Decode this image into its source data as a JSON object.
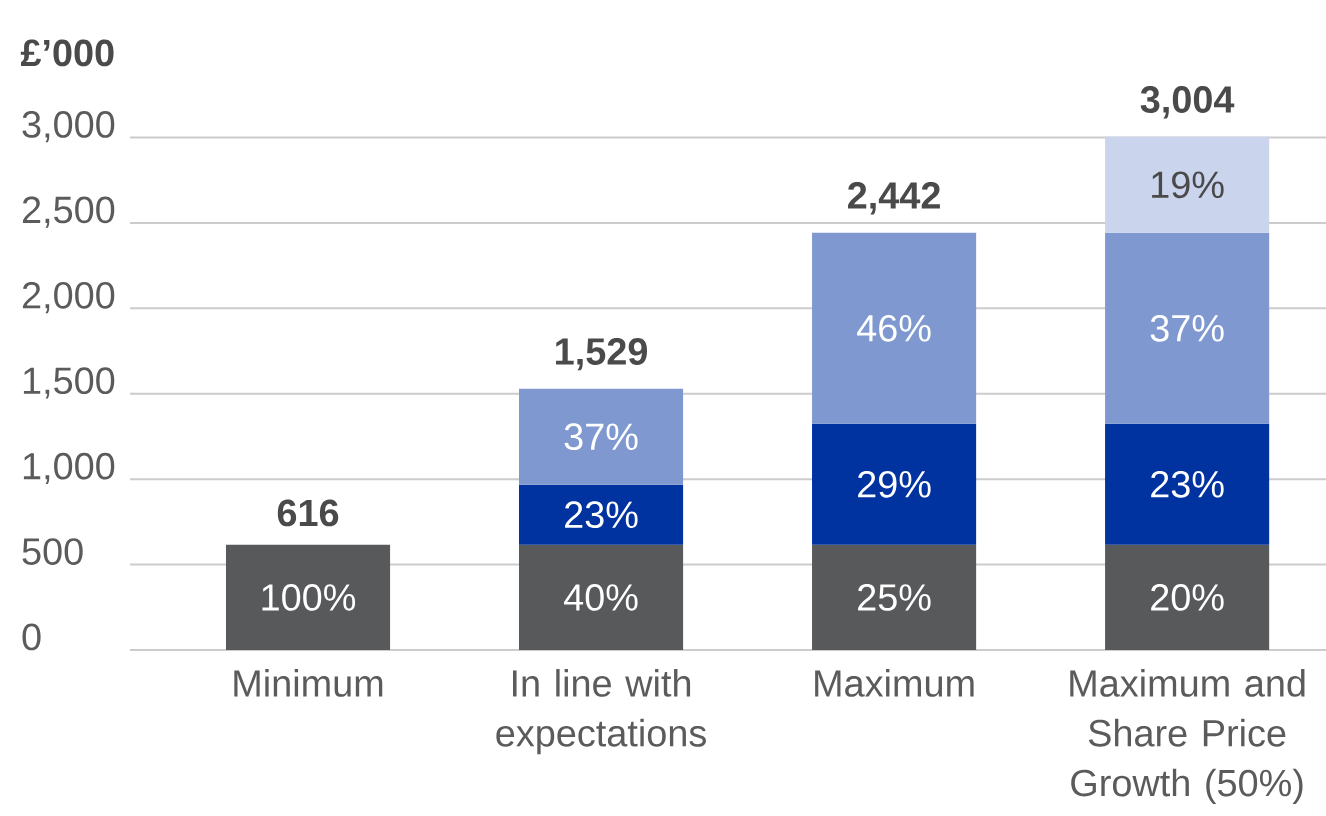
{
  "chart_data": {
    "type": "bar",
    "stacked": true,
    "ylabel": "£’000",
    "categories": [
      "Minimum",
      "In line with expectations",
      "Maximum",
      "Maximum and Share Price Growth (50%)"
    ],
    "series": [
      {
        "color": "#58595b",
        "values": [
          616,
          616,
          616,
          616
        ]
      },
      {
        "color": "#0033a0",
        "values": [
          null,
          352,
          708,
          708
        ]
      },
      {
        "color": "#7f99d0",
        "values": [
          null,
          561,
          1118,
          1118
        ]
      },
      {
        "color": "#cad5ed",
        "values": [
          null,
          null,
          null,
          562
        ]
      }
    ],
    "totals": [
      "616",
      "1,529",
      "2,442",
      "3,004"
    ],
    "annotations": [
      "100%",
      "40%",
      "23%",
      "37%",
      "25%",
      "29%",
      "46%",
      "20%",
      "23%",
      "37%",
      "19%"
    ],
    "ylim": [
      0,
      3004
    ],
    "yticks": [
      0,
      500,
      {
        "value": 1000,
        "label": "1,000"
      },
      {
        "value": 1500,
        "label": "1,500"
      },
      {
        "value": 2000,
        "label": "2,000"
      },
      {
        "value": 2500,
        "label": "2,500"
      },
      {
        "value": 3000,
        "label": "3,000"
      }
    ],
    "grid": "y"
  }
}
